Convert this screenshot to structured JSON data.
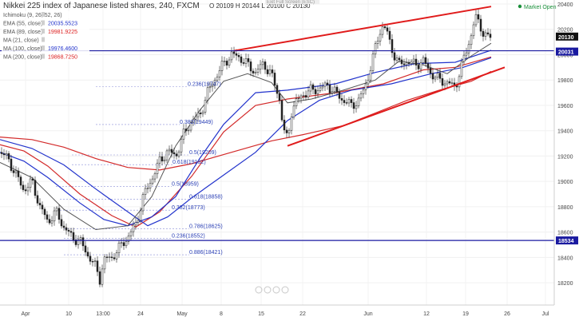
{
  "header": {
    "title": "Nikkei 225 index of Japanese listed shares, 240, FXCM",
    "ohlc": "O 20109 H 20144 L 20100 C 20130",
    "exit_fullscreen": "Exit Full Screen (ESC)",
    "market_status": "Market Open"
  },
  "legend": [
    {
      "label": "Ichimoku (9, 26, 52, 26)",
      "value": "",
      "color": "#aaaaaa"
    },
    {
      "label": "EMA (55, close)",
      "value": "20035.5523",
      "color": "#2233cc"
    },
    {
      "label": "EMA (89, close)",
      "value": "19981.9225",
      "color": "#dd2222"
    },
    {
      "label": "MA (21, close)",
      "value": "",
      "color": "#aaaaaa"
    },
    {
      "label": "MA (100, close)",
      "value": "19976.4600",
      "color": "#2233cc"
    },
    {
      "label": "MA (200, close)",
      "value": "19868.7250",
      "color": "#dd2222"
    }
  ],
  "price_tags": [
    {
      "value": "20130",
      "color": "#111111"
    },
    {
      "value": "20031",
      "color": "#1a1aa0"
    },
    {
      "value": "18534",
      "color": "#1a1aa0"
    }
  ],
  "fib_labels": [
    "0.236(19747)",
    "0.382(19449)",
    "0.5(19209)",
    "0.618(19132)",
    "0.5(18959)",
    "0.618(18858)",
    "0.382(18773)",
    "0.786(18625)",
    "0.236(18552)",
    "0.886(18421)"
  ],
  "chart_data": {
    "type": "line",
    "title": "Nikkei 225 index of Japanese listed shares, 240, FXCM",
    "xlabel": "",
    "ylabel": "",
    "ylim": [
      18100,
      20400
    ],
    "y_ticks": [
      20400,
      20200,
      20000,
      19800,
      19600,
      19400,
      19200,
      19000,
      18800,
      18600,
      18400,
      18200
    ],
    "x_ticks": [
      "Apr",
      "10",
      "13:00",
      "24",
      "May",
      "8",
      "15",
      "22",
      "Jun",
      "12",
      "19",
      "26",
      "Jul"
    ],
    "grid": true,
    "horizontal_levels": [
      20031,
      18534
    ],
    "last_price": 20130,
    "series": [
      {
        "name": "EMA (55, close)",
        "color": "#2233cc",
        "last": 20035.5523
      },
      {
        "name": "EMA (89, close)",
        "color": "#dd2222",
        "last": 19981.9225
      },
      {
        "name": "MA (100, close)",
        "color": "#2233cc",
        "last": 19976.46
      },
      {
        "name": "MA (200, close)",
        "color": "#dd2222",
        "last": 19868.725
      }
    ]
  }
}
